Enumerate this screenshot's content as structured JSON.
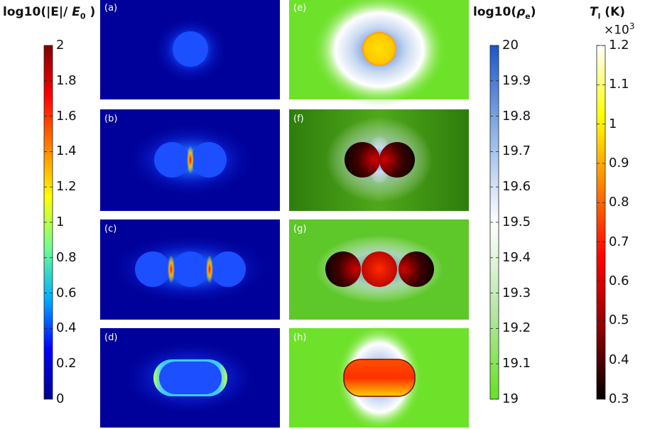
{
  "panels": {
    "a": "(a)",
    "b": "(b)",
    "c": "(c)",
    "d": "(d)",
    "e": "(e)",
    "f": "(f)",
    "g": "(g)",
    "h": "(h)"
  },
  "colorbars": {
    "field": {
      "title_prefix": "log10(|E|/ ",
      "title_sym": "E",
      "title_sub": "0",
      "title_suffix": " )",
      "ticks": [
        "2",
        "1.8",
        "1.6",
        "1.4",
        "1.2",
        "1",
        "0.8",
        "0.6",
        "0.4",
        "0.2",
        "0"
      ],
      "colors": [
        "#00008f",
        "#0000ff",
        "#00b0ff",
        "#70ff90",
        "#ffff00",
        "#ff8000",
        "#ff0000",
        "#800000"
      ]
    },
    "density": {
      "title_prefix": "log10(",
      "title_sym": "ρ",
      "title_sub": "e",
      "title_suffix": ")",
      "ticks": [
        "20",
        "19.9",
        "19.8",
        "19.7",
        "19.6",
        "19.5",
        "19.4",
        "19.3",
        "19.2",
        "19.1",
        "19"
      ],
      "colors": [
        "#66e21f",
        "#b8e6a8",
        "#ffffff",
        "#8fb5e8",
        "#1c56c8"
      ]
    },
    "temperature": {
      "title_sym": "T",
      "title_sub": "l",
      "title_suffix": " (K)",
      "exponent_base": "×10",
      "exponent_power": "3",
      "ticks": [
        "1.2",
        "1.1",
        "1",
        "0.9",
        "0.8",
        "0.7",
        "0.6",
        "0.5",
        "0.4",
        "0.3"
      ],
      "colors": [
        "#000000",
        "#900000",
        "#ff0000",
        "#ff8000",
        "#ffff00",
        "#ffffff"
      ]
    }
  }
}
